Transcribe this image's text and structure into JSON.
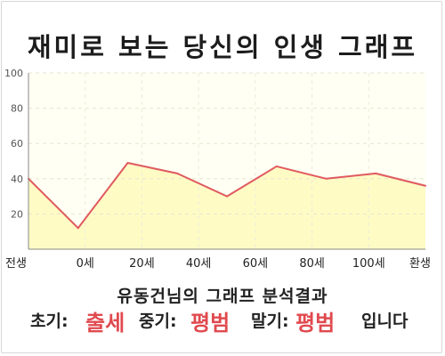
{
  "title": "재미로 보는 당신의 인생 그래프",
  "chart_data": {
    "type": "area",
    "x_ticks": [
      "전생",
      "0세",
      "20세",
      "40세",
      "60세",
      "80세",
      "100세",
      "환생"
    ],
    "y_ticks": [
      "100",
      "80",
      "60",
      "40",
      "20"
    ],
    "ylim": [
      0,
      100
    ],
    "grid": true,
    "values": [
      40,
      12,
      49,
      43,
      30,
      47,
      40,
      43,
      36
    ],
    "fill_color": "#fefbc5",
    "line_color": "#e0595e"
  },
  "summary": "유동건님의 그래프 분석결과",
  "phases": {
    "early_label": "초기:",
    "early_value": "출세",
    "mid_label": "중기:",
    "mid_value": "평범",
    "late_label": "말기:",
    "late_value": "평범",
    "suffix": "입니다"
  }
}
